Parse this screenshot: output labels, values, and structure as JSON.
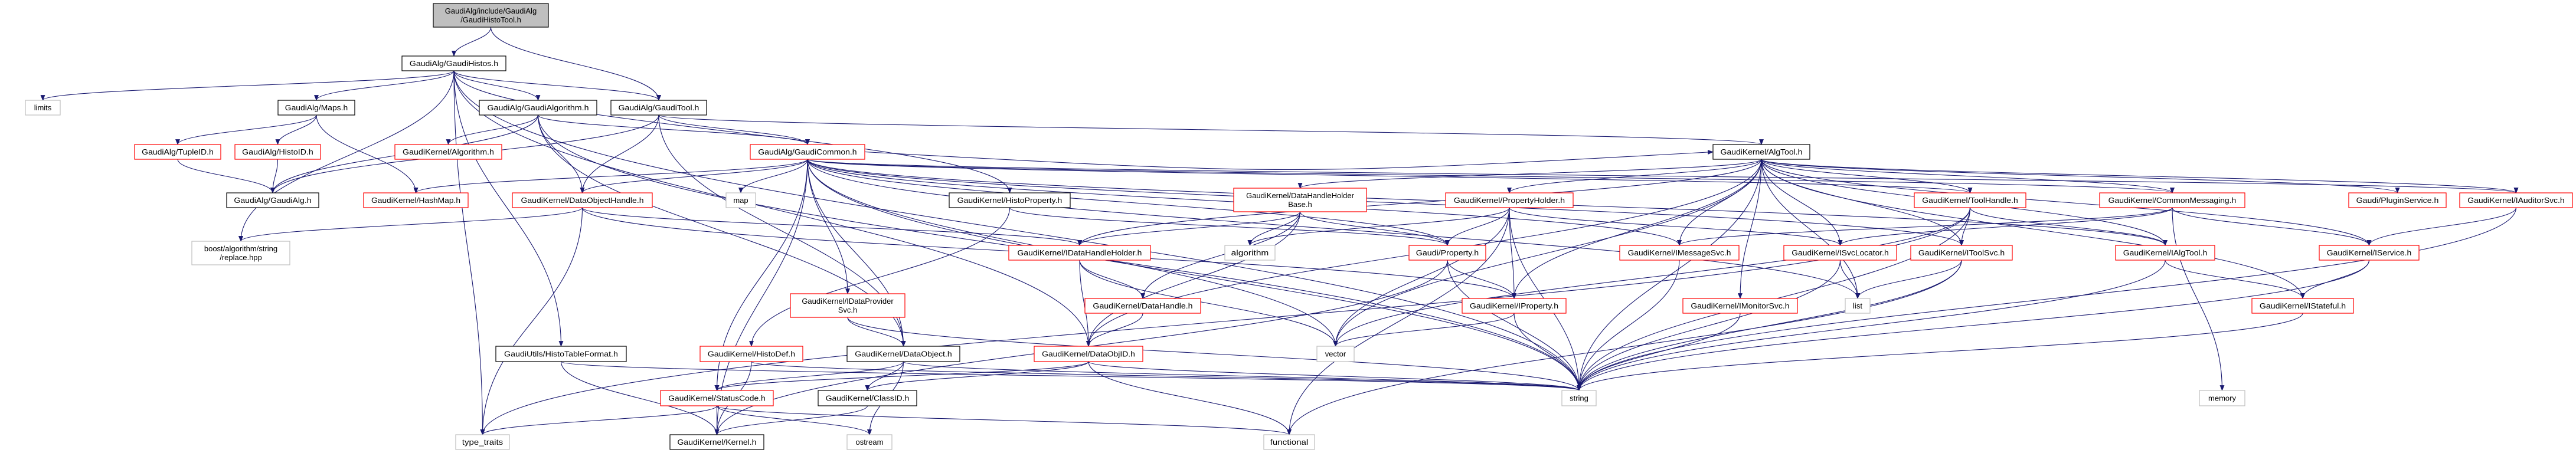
{
  "graph": {
    "colors": {
      "edge": "#191970",
      "root_fill": "#bfbfbf",
      "documented_border": "#000000",
      "undocumented_border": "#ff0000",
      "external_border": "#bfbfbf"
    },
    "nodes": [
      {
        "id": "histotool",
        "label": [
          "GaudiAlg/include/GaudiAlg",
          "/GaudiHistoTool.h"
        ],
        "kind": "root"
      },
      {
        "id": "gaudihistos",
        "label": [
          "GaudiAlg/GaudiHistos.h"
        ],
        "kind": "documented"
      },
      {
        "id": "limits",
        "label": [
          "limits"
        ],
        "kind": "external"
      },
      {
        "id": "maps",
        "label": [
          "GaudiAlg/Maps.h"
        ],
        "kind": "documented"
      },
      {
        "id": "gaudialgorithm",
        "label": [
          "GaudiAlg/GaudiAlgorithm.h"
        ],
        "kind": "documented"
      },
      {
        "id": "gauditool",
        "label": [
          "GaudiAlg/GaudiTool.h"
        ],
        "kind": "documented"
      },
      {
        "id": "tupleid",
        "label": [
          "GaudiAlg/TupleID.h"
        ],
        "kind": "undocumented"
      },
      {
        "id": "histoid",
        "label": [
          "GaudiAlg/HistoID.h"
        ],
        "kind": "undocumented"
      },
      {
        "id": "algorithm_h",
        "label": [
          "GaudiKernel/Algorithm.h"
        ],
        "kind": "undocumented"
      },
      {
        "id": "gaudicommon",
        "label": [
          "GaudiAlg/GaudiCommon.h"
        ],
        "kind": "undocumented"
      },
      {
        "id": "algtool",
        "label": [
          "GaudiKernel/AlgTool.h"
        ],
        "kind": "documented"
      },
      {
        "id": "gaudialg",
        "label": [
          "GaudiAlg/GaudiAlg.h"
        ],
        "kind": "documented"
      },
      {
        "id": "hashmap",
        "label": [
          "GaudiKernel/HashMap.h"
        ],
        "kind": "undocumented"
      },
      {
        "id": "dataobjecthandle",
        "label": [
          "GaudiKernel/DataObjectHandle.h"
        ],
        "kind": "undocumented"
      },
      {
        "id": "map",
        "label": [
          "map"
        ],
        "kind": "external"
      },
      {
        "id": "histoproperty",
        "label": [
          "GaudiKernel/HistoProperty.h"
        ],
        "kind": "documented"
      },
      {
        "id": "datahandleholderbase",
        "label": [
          "GaudiKernel/DataHandleHolder",
          "Base.h"
        ],
        "kind": "undocumented"
      },
      {
        "id": "propertyholder",
        "label": [
          "GaudiKernel/PropertyHolder.h"
        ],
        "kind": "undocumented"
      },
      {
        "id": "toolhandle",
        "label": [
          "GaudiKernel/ToolHandle.h"
        ],
        "kind": "undocumented"
      },
      {
        "id": "commonmessaging",
        "label": [
          "GaudiKernel/CommonMessaging.h"
        ],
        "kind": "undocumented"
      },
      {
        "id": "pluginservice",
        "label": [
          "Gaudi/PluginService.h"
        ],
        "kind": "undocumented"
      },
      {
        "id": "iauditorsvc",
        "label": [
          "GaudiKernel/IAuditorSvc.h"
        ],
        "kind": "undocumented"
      },
      {
        "id": "boostreplace",
        "label": [
          "boost/algorithm/string",
          "/replace.hpp"
        ],
        "kind": "external"
      },
      {
        "id": "idatahandleholder",
        "label": [
          "GaudiKernel/IDataHandleHolder.h"
        ],
        "kind": "undocumented"
      },
      {
        "id": "algorithm",
        "label": [
          "algorithm"
        ],
        "kind": "external"
      },
      {
        "id": "property",
        "label": [
          "Gaudi/Property.h"
        ],
        "kind": "undocumented"
      },
      {
        "id": "imessagesvc",
        "label": [
          "GaudiKernel/IMessageSvc.h"
        ],
        "kind": "undocumented"
      },
      {
        "id": "isvclocator",
        "label": [
          "GaudiKernel/ISvcLocator.h"
        ],
        "kind": "undocumented"
      },
      {
        "id": "itoolsvc",
        "label": [
          "GaudiKernel/IToolSvc.h"
        ],
        "kind": "undocumented"
      },
      {
        "id": "ialgtool",
        "label": [
          "GaudiKernel/IAlgTool.h"
        ],
        "kind": "undocumented"
      },
      {
        "id": "iservice",
        "label": [
          "GaudiKernel/IService.h"
        ],
        "kind": "undocumented"
      },
      {
        "id": "idataprovidersvc",
        "label": [
          "GaudiKernel/IDataProvider",
          "Svc.h"
        ],
        "kind": "undocumented"
      },
      {
        "id": "datahandle",
        "label": [
          "GaudiKernel/DataHandle.h"
        ],
        "kind": "undocumented"
      },
      {
        "id": "iproperty",
        "label": [
          "GaudiKernel/IProperty.h"
        ],
        "kind": "undocumented"
      },
      {
        "id": "imonitorsvc",
        "label": [
          "GaudiKernel/IMonitorSvc.h"
        ],
        "kind": "undocumented"
      },
      {
        "id": "list",
        "label": [
          "list"
        ],
        "kind": "external"
      },
      {
        "id": "istateful",
        "label": [
          "GaudiKernel/IStateful.h"
        ],
        "kind": "undocumented"
      },
      {
        "id": "histotableformat",
        "label": [
          "GaudiUtils/HistoTableFormat.h"
        ],
        "kind": "documented"
      },
      {
        "id": "histodef",
        "label": [
          "GaudiKernel/HistoDef.h"
        ],
        "kind": "undocumented"
      },
      {
        "id": "dataobject",
        "label": [
          "GaudiKernel/DataObject.h"
        ],
        "kind": "documented"
      },
      {
        "id": "dataobjid",
        "label": [
          "GaudiKernel/DataObjID.h"
        ],
        "kind": "undocumented"
      },
      {
        "id": "vector",
        "label": [
          "vector"
        ],
        "kind": "external"
      },
      {
        "id": "statuscode",
        "label": [
          "GaudiKernel/StatusCode.h"
        ],
        "kind": "undocumented"
      },
      {
        "id": "classid",
        "label": [
          "GaudiKernel/ClassID.h"
        ],
        "kind": "documented"
      },
      {
        "id": "string",
        "label": [
          "string"
        ],
        "kind": "external"
      },
      {
        "id": "memory",
        "label": [
          "memory"
        ],
        "kind": "external"
      },
      {
        "id": "type_traits",
        "label": [
          "type_traits"
        ],
        "kind": "external"
      },
      {
        "id": "kernel",
        "label": [
          "GaudiKernel/Kernel.h"
        ],
        "kind": "documented"
      },
      {
        "id": "ostream",
        "label": [
          "ostream"
        ],
        "kind": "external"
      },
      {
        "id": "functional",
        "label": [
          "functional"
        ],
        "kind": "external"
      }
    ],
    "edges": [
      [
        "histotool",
        "gaudihistos"
      ],
      [
        "histotool",
        "gauditool"
      ],
      [
        "gaudihistos",
        "limits"
      ],
      [
        "gaudihistos",
        "maps"
      ],
      [
        "gaudihistos",
        "gaudialgorithm"
      ],
      [
        "gaudihistos",
        "gauditool"
      ],
      [
        "gaudihistos",
        "boostreplace"
      ],
      [
        "gaudihistos",
        "histotableformat"
      ],
      [
        "gaudihistos",
        "type_traits"
      ],
      [
        "gaudihistos",
        "histoproperty"
      ],
      [
        "gaudihistos",
        "dataobjid"
      ],
      [
        "gaudihistos",
        "string"
      ],
      [
        "maps",
        "tupleid"
      ],
      [
        "maps",
        "histoid"
      ],
      [
        "maps",
        "hashmap"
      ],
      [
        "tupleid",
        "gaudialg"
      ],
      [
        "histoid",
        "gaudialg"
      ],
      [
        "gaudialgorithm",
        "gaudialg"
      ],
      [
        "gaudialgorithm",
        "algorithm_h"
      ],
      [
        "gaudialgorithm",
        "dataobjecthandle"
      ],
      [
        "gaudialgorithm",
        "gaudicommon"
      ],
      [
        "gaudialgorithm",
        "string"
      ],
      [
        "gaudialgorithm",
        "dataobject"
      ],
      [
        "gauditool",
        "gaudialg"
      ],
      [
        "gauditool",
        "dataobjecthandle"
      ],
      [
        "gauditool",
        "gaudicommon"
      ],
      [
        "gauditool",
        "algtool"
      ],
      [
        "gauditool",
        "dataobject"
      ],
      [
        "gaudicommon",
        "hashmap"
      ],
      [
        "gaudicommon",
        "dataobjecthandle"
      ],
      [
        "gaudicommon",
        "map"
      ],
      [
        "gaudicommon",
        "idataprovidersvc"
      ],
      [
        "gaudicommon",
        "statuscode"
      ],
      [
        "gaudicommon",
        "dataobject"
      ],
      [
        "gaudicommon",
        "kernel"
      ],
      [
        "gaudicommon",
        "string"
      ],
      [
        "gaudicommon",
        "vector"
      ],
      [
        "gaudicommon",
        "algtool"
      ],
      [
        "gaudicommon",
        "imessagesvc"
      ],
      [
        "gaudicommon",
        "toolhandle"
      ],
      [
        "gaudicommon",
        "ialgtool"
      ],
      [
        "gaudicommon",
        "itoolsvc"
      ],
      [
        "gaudicommon",
        "iauditorsvc"
      ],
      [
        "gaudicommon",
        "commonmessaging"
      ],
      [
        "gaudicommon",
        "property"
      ],
      [
        "gaudicommon",
        "list"
      ],
      [
        "dataobjecthandle",
        "boostreplace"
      ],
      [
        "dataobjecthandle",
        "type_traits"
      ],
      [
        "dataobjecthandle",
        "idatahandleholder"
      ],
      [
        "dataobjecthandle",
        "iproperty"
      ],
      [
        "histoproperty",
        "histodef"
      ],
      [
        "histoproperty",
        "property"
      ],
      [
        "datahandleholderbase",
        "idatahandleholder"
      ],
      [
        "datahandleholderbase",
        "algorithm"
      ],
      [
        "datahandleholderbase",
        "property"
      ],
      [
        "datahandleholderbase",
        "dataobjid"
      ],
      [
        "datahandleholderbase",
        "datahandle"
      ],
      [
        "idatahandleholder",
        "datahandle"
      ],
      [
        "idatahandleholder",
        "dataobjid"
      ],
      [
        "idatahandleholder",
        "vector"
      ],
      [
        "idataprovidersvc",
        "dataobject"
      ],
      [
        "idataprovidersvc",
        "string"
      ],
      [
        "datahandle",
        "dataobjid"
      ],
      [
        "dataobject",
        "statuscode"
      ],
      [
        "dataobject",
        "classid"
      ],
      [
        "dataobject",
        "ostream"
      ],
      [
        "dataobject",
        "string"
      ],
      [
        "dataobjid",
        "classid"
      ],
      [
        "dataobjid",
        "statuscode"
      ],
      [
        "dataobjid",
        "string"
      ],
      [
        "dataobjid",
        "functional"
      ],
      [
        "histodef",
        "kernel"
      ],
      [
        "histodef",
        "string"
      ],
      [
        "statuscode",
        "kernel"
      ],
      [
        "statuscode",
        "ostream"
      ],
      [
        "statuscode",
        "type_traits"
      ],
      [
        "statuscode",
        "functional"
      ],
      [
        "classid",
        "kernel"
      ],
      [
        "histotableformat",
        "kernel"
      ],
      [
        "histotableformat",
        "string"
      ],
      [
        "algtool",
        "datahandleholderbase"
      ],
      [
        "algtool",
        "propertyholder"
      ],
      [
        "algtool",
        "idatahandleholder"
      ],
      [
        "algtool",
        "iproperty"
      ],
      [
        "algtool",
        "imessagesvc"
      ],
      [
        "algtool",
        "imonitorsvc"
      ],
      [
        "algtool",
        "isvclocator"
      ],
      [
        "algtool",
        "itoolsvc"
      ],
      [
        "algtool",
        "toolhandle"
      ],
      [
        "algtool",
        "commonmessaging"
      ],
      [
        "algtool",
        "ialgtool"
      ],
      [
        "algtool",
        "iservice"
      ],
      [
        "algtool",
        "istateful"
      ],
      [
        "algtool",
        "pluginservice"
      ],
      [
        "algtool",
        "iauditorsvc"
      ],
      [
        "algtool",
        "list"
      ],
      [
        "algtool",
        "vector"
      ],
      [
        "algtool",
        "string"
      ],
      [
        "algtool",
        "dataobjid"
      ],
      [
        "propertyholder",
        "algorithm"
      ],
      [
        "propertyholder",
        "property"
      ],
      [
        "propertyholder",
        "iproperty"
      ],
      [
        "propertyholder",
        "vector"
      ],
      [
        "propertyholder",
        "string"
      ],
      [
        "propertyholder",
        "functional"
      ],
      [
        "propertyholder",
        "isvclocator"
      ],
      [
        "property",
        "iproperty"
      ],
      [
        "property",
        "string"
      ],
      [
        "property",
        "kernel"
      ],
      [
        "iproperty",
        "vector"
      ],
      [
        "iproperty",
        "string"
      ],
      [
        "imessagesvc",
        "string"
      ],
      [
        "isvclocator",
        "list"
      ],
      [
        "isvclocator",
        "string"
      ],
      [
        "imonitorsvc",
        "string"
      ],
      [
        "toolhandle",
        "itoolsvc"
      ],
      [
        "toolhandle",
        "ialgtool"
      ],
      [
        "toolhandle",
        "string"
      ],
      [
        "toolhandle",
        "vector"
      ],
      [
        "toolhandle",
        "type_traits"
      ],
      [
        "itoolsvc",
        "list"
      ],
      [
        "itoolsvc",
        "string"
      ],
      [
        "itoolsvc",
        "functional"
      ],
      [
        "commonmessaging",
        "imessagesvc"
      ],
      [
        "commonmessaging",
        "isvclocator"
      ],
      [
        "commonmessaging",
        "iservice"
      ],
      [
        "commonmessaging",
        "memory"
      ],
      [
        "ialgtool",
        "istateful"
      ],
      [
        "ialgtool",
        "string"
      ],
      [
        "iservice",
        "istateful"
      ],
      [
        "iservice",
        "string"
      ],
      [
        "iauditorsvc",
        "iservice"
      ],
      [
        "iauditorsvc",
        "string"
      ],
      [
        "istateful",
        "string"
      ]
    ]
  }
}
